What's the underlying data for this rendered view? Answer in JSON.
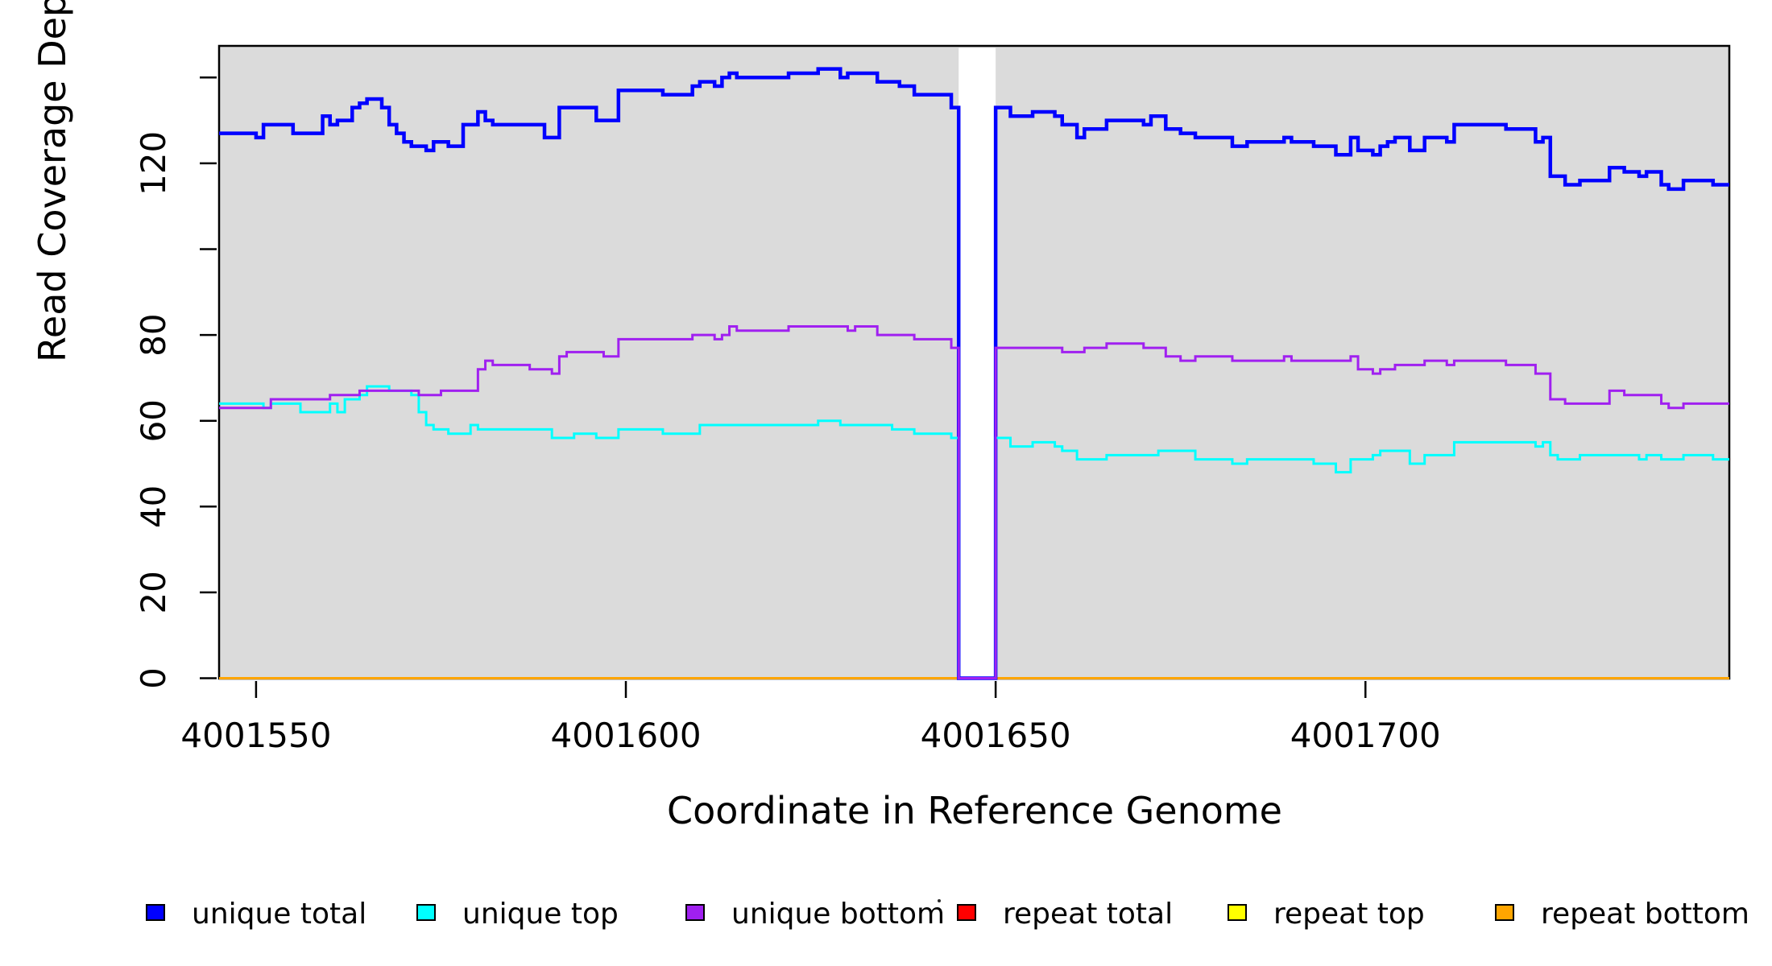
{
  "figure": {
    "background": "#ffffff",
    "plot_background": "#dbdbdb",
    "border_color": "#000000"
  },
  "chart_data": {
    "type": "line",
    "subtype": "step",
    "title": "",
    "xlabel": "Coordinate in Reference Genome",
    "ylabel": "Read Coverage Depth",
    "x_range": [
      4001545,
      4001749.2
    ],
    "y_range": [
      0,
      147.4
    ],
    "grid": false,
    "legend_position": "bottom",
    "x_ticks": [
      {
        "value": 4001550,
        "label": "4001550"
      },
      {
        "value": 4001600,
        "label": "4001600"
      },
      {
        "value": 4001650,
        "label": "4001650"
      },
      {
        "value": 4001700,
        "label": "4001700"
      }
    ],
    "y_ticks": [
      {
        "value": 0,
        "label": "0"
      },
      {
        "value": 20,
        "label": "20"
      },
      {
        "value": 40,
        "label": "40"
      },
      {
        "value": 60,
        "label": "60"
      },
      {
        "value": 80,
        "label": "80"
      },
      {
        "value": 100,
        "label": ""
      },
      {
        "value": 120,
        "label": "120"
      },
      {
        "value": 140,
        "label": ""
      }
    ],
    "gap_region": {
      "x_start": 4001645,
      "x_end": 4001650,
      "color": "#ffffff",
      "note": "zero-coverage gap, background masked white"
    },
    "draw_order": [
      "repeat total",
      "repeat top",
      "repeat bottom",
      "unique total",
      "unique top",
      "unique bottom"
    ],
    "series": [
      {
        "name": "unique total",
        "color": "#0000ff",
        "line_width": 4.5,
        "points": [
          [
            4001545,
            127
          ],
          [
            4001550,
            126
          ],
          [
            4001551,
            129
          ],
          [
            4001555,
            127
          ],
          [
            4001559,
            131
          ],
          [
            4001560,
            129
          ],
          [
            4001561,
            130
          ],
          [
            4001563,
            133
          ],
          [
            4001564,
            134
          ],
          [
            4001565,
            135
          ],
          [
            4001567,
            133
          ],
          [
            4001568,
            129
          ],
          [
            4001569,
            127
          ],
          [
            4001570,
            125
          ],
          [
            4001571,
            124
          ],
          [
            4001573,
            123
          ],
          [
            4001574,
            125
          ],
          [
            4001576,
            124
          ],
          [
            4001578,
            129
          ],
          [
            4001580,
            132
          ],
          [
            4001581,
            130
          ],
          [
            4001582,
            129
          ],
          [
            4001589,
            126
          ],
          [
            4001591,
            133
          ],
          [
            4001596,
            130
          ],
          [
            4001599,
            137
          ],
          [
            4001605,
            136
          ],
          [
            4001609,
            138
          ],
          [
            4001610,
            139
          ],
          [
            4001612,
            138
          ],
          [
            4001613,
            140
          ],
          [
            4001614,
            141
          ],
          [
            4001615,
            140
          ],
          [
            4001622,
            141
          ],
          [
            4001626,
            142
          ],
          [
            4001629,
            140
          ],
          [
            4001630,
            141
          ],
          [
            4001634,
            139
          ],
          [
            4001637,
            138
          ],
          [
            4001639,
            136
          ],
          [
            4001644,
            133
          ],
          [
            4001645,
            0
          ],
          [
            4001650,
            133
          ],
          [
            4001652,
            131
          ],
          [
            4001655,
            132
          ],
          [
            4001658,
            131
          ],
          [
            4001659,
            129
          ],
          [
            4001661,
            126
          ],
          [
            4001662,
            128
          ],
          [
            4001665,
            130
          ],
          [
            4001670,
            129
          ],
          [
            4001671,
            131
          ],
          [
            4001673,
            128
          ],
          [
            4001675,
            127
          ],
          [
            4001677,
            126
          ],
          [
            4001682,
            124
          ],
          [
            4001684,
            125
          ],
          [
            4001689,
            126
          ],
          [
            4001690,
            125
          ],
          [
            4001693,
            124
          ],
          [
            4001696,
            122
          ],
          [
            4001698,
            126
          ],
          [
            4001699,
            123
          ],
          [
            4001701,
            122
          ],
          [
            4001702,
            124
          ],
          [
            4001703,
            125
          ],
          [
            4001704,
            126
          ],
          [
            4001706,
            123
          ],
          [
            4001708,
            126
          ],
          [
            4001711,
            125
          ],
          [
            4001712,
            129
          ],
          [
            4001719,
            128
          ],
          [
            4001723,
            125
          ],
          [
            4001724,
            126
          ],
          [
            4001725,
            117
          ],
          [
            4001727,
            115
          ],
          [
            4001729,
            116
          ],
          [
            4001733,
            119
          ],
          [
            4001735,
            118
          ],
          [
            4001737,
            117
          ],
          [
            4001738,
            118
          ],
          [
            4001740,
            115
          ],
          [
            4001741,
            114
          ],
          [
            4001743,
            116
          ],
          [
            4001747,
            115
          ]
        ]
      },
      {
        "name": "unique top",
        "color": "#00ffff",
        "line_width": 3,
        "points": [
          [
            4001545,
            64
          ],
          [
            4001551,
            63
          ],
          [
            4001552,
            64
          ],
          [
            4001556,
            62
          ],
          [
            4001560,
            64
          ],
          [
            4001561,
            62
          ],
          [
            4001562,
            65
          ],
          [
            4001564,
            66
          ],
          [
            4001565,
            68
          ],
          [
            4001568,
            67
          ],
          [
            4001571,
            66
          ],
          [
            4001572,
            62
          ],
          [
            4001573,
            59
          ],
          [
            4001574,
            58
          ],
          [
            4001576,
            57
          ],
          [
            4001579,
            59
          ],
          [
            4001580,
            58
          ],
          [
            4001590,
            56
          ],
          [
            4001593,
            57
          ],
          [
            4001596,
            56
          ],
          [
            4001599,
            58
          ],
          [
            4001605,
            57
          ],
          [
            4001610,
            59
          ],
          [
            4001626,
            60
          ],
          [
            4001629,
            59
          ],
          [
            4001636,
            58
          ],
          [
            4001639,
            57
          ],
          [
            4001644,
            56
          ],
          [
            4001645,
            0
          ],
          [
            4001650,
            56
          ],
          [
            4001652,
            54
          ],
          [
            4001655,
            55
          ],
          [
            4001658,
            54
          ],
          [
            4001659,
            53
          ],
          [
            4001661,
            51
          ],
          [
            4001665,
            52
          ],
          [
            4001672,
            53
          ],
          [
            4001677,
            51
          ],
          [
            4001682,
            50
          ],
          [
            4001684,
            51
          ],
          [
            4001693,
            50
          ],
          [
            4001696,
            48
          ],
          [
            4001698,
            51
          ],
          [
            4001701,
            52
          ],
          [
            4001702,
            53
          ],
          [
            4001706,
            50
          ],
          [
            4001708,
            52
          ],
          [
            4001712,
            55
          ],
          [
            4001723,
            54
          ],
          [
            4001724,
            55
          ],
          [
            4001725,
            52
          ],
          [
            4001726,
            51
          ],
          [
            4001729,
            52
          ],
          [
            4001737,
            51
          ],
          [
            4001738,
            52
          ],
          [
            4001740,
            51
          ],
          [
            4001743,
            52
          ],
          [
            4001747,
            51
          ]
        ]
      },
      {
        "name": "unique bottom",
        "color": "#a020f0",
        "line_width": 3,
        "points": [
          [
            4001545,
            63
          ],
          [
            4001552,
            65
          ],
          [
            4001560,
            66
          ],
          [
            4001564,
            67
          ],
          [
            4001572,
            66
          ],
          [
            4001575,
            67
          ],
          [
            4001580,
            72
          ],
          [
            4001581,
            74
          ],
          [
            4001582,
            73
          ],
          [
            4001587,
            72
          ],
          [
            4001590,
            71
          ],
          [
            4001591,
            75
          ],
          [
            4001592,
            76
          ],
          [
            4001597,
            75
          ],
          [
            4001599,
            79
          ],
          [
            4001609,
            80
          ],
          [
            4001612,
            79
          ],
          [
            4001613,
            80
          ],
          [
            4001614,
            82
          ],
          [
            4001615,
            81
          ],
          [
            4001622,
            82
          ],
          [
            4001630,
            81
          ],
          [
            4001631,
            82
          ],
          [
            4001634,
            80
          ],
          [
            4001639,
            79
          ],
          [
            4001644,
            77
          ],
          [
            4001645,
            0
          ],
          [
            4001650,
            77
          ],
          [
            4001659,
            76
          ],
          [
            4001662,
            77
          ],
          [
            4001665,
            78
          ],
          [
            4001670,
            77
          ],
          [
            4001673,
            75
          ],
          [
            4001675,
            74
          ],
          [
            4001677,
            75
          ],
          [
            4001682,
            74
          ],
          [
            4001689,
            75
          ],
          [
            4001690,
            74
          ],
          [
            4001698,
            75
          ],
          [
            4001699,
            72
          ],
          [
            4001701,
            71
          ],
          [
            4001702,
            72
          ],
          [
            4001704,
            73
          ],
          [
            4001708,
            74
          ],
          [
            4001711,
            73
          ],
          [
            4001712,
            74
          ],
          [
            4001719,
            73
          ],
          [
            4001723,
            71
          ],
          [
            4001725,
            65
          ],
          [
            4001727,
            64
          ],
          [
            4001733,
            67
          ],
          [
            4001735,
            66
          ],
          [
            4001740,
            64
          ],
          [
            4001741,
            63
          ],
          [
            4001743,
            64
          ]
        ]
      },
      {
        "name": "repeat total",
        "color": "#ff0000",
        "line_width": 3,
        "points": [
          [
            4001545,
            0
          ]
        ]
      },
      {
        "name": "repeat top",
        "color": "#ffff00",
        "line_width": 3,
        "points": [
          [
            4001545,
            0
          ]
        ]
      },
      {
        "name": "repeat bottom",
        "color": "#ffa500",
        "line_width": 3,
        "points": [
          [
            4001545,
            0
          ]
        ]
      }
    ]
  },
  "legend": {
    "items": [
      {
        "label": "unique total",
        "color": "#0000ff"
      },
      {
        "label": "unique top",
        "color": "#00ffff"
      },
      {
        "label": "unique bottom",
        "color": "#a020f0"
      },
      {
        "label": "repeat total",
        "color": "#ff0000"
      },
      {
        "label": "repeat top",
        "color": "#ffff00"
      },
      {
        "label": "repeat bottom",
        "color": "#ffa500"
      }
    ]
  }
}
